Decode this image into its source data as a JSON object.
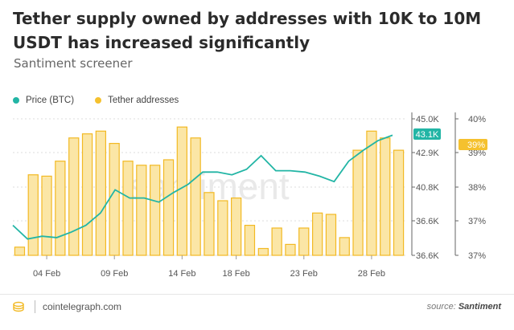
{
  "title": "Tether supply owned by addresses with 10K to 10M USDT has increased significantly",
  "subtitle": "Santiment screener",
  "footer": {
    "brand": "cointelegraph.com",
    "source_prefix": "source: ",
    "source_name": "Santiment"
  },
  "watermark": "santiment",
  "colors": {
    "price": "#22b5a5",
    "tether": "#f5c12e",
    "bar_fill": "#fbe6a6",
    "bar_stroke": "#f2b924",
    "grid": "#dcdcdc"
  },
  "chart_data": {
    "type": "bar+line",
    "x_ticks": [
      "04 Feb",
      "09 Feb",
      "14 Feb",
      "18 Feb",
      "23 Feb",
      "28 Feb"
    ],
    "x_tick_index": [
      2,
      7,
      12,
      16,
      21,
      26
    ],
    "y_left": {
      "ticks": [
        "45.0K",
        "42.9K",
        "40.8K",
        "36.6K",
        "36.6K"
      ],
      "current": "43.1K"
    },
    "y_right": {
      "ticks": [
        "40%",
        "39%",
        "38%",
        "37%",
        "37%"
      ],
      "current": "39%"
    },
    "legend": [
      {
        "name": "Price (BTC)",
        "color": "#22b5a5"
      },
      {
        "name": "Tether addresses",
        "color": "#f5c12e"
      }
    ],
    "series": [
      {
        "name": "Tether addresses",
        "kind": "bar",
        "axis": "right",
        "values": [
          0.06,
          0.59,
          0.58,
          0.69,
          0.86,
          0.89,
          0.91,
          0.82,
          0.69,
          0.66,
          0.66,
          0.7,
          0.94,
          0.86,
          0.46,
          0.4,
          0.42,
          0.22,
          0.05,
          0.2,
          0.08,
          0.2,
          0.31,
          0.3,
          0.13,
          0.77,
          0.91,
          0.86,
          0.77
        ]
      },
      {
        "name": "Price (BTC)",
        "kind": "line",
        "axis": "left",
        "values": [
          0.22,
          0.12,
          0.14,
          0.13,
          0.17,
          0.22,
          0.31,
          0.48,
          0.42,
          0.42,
          0.39,
          0.46,
          0.52,
          0.61,
          0.61,
          0.59,
          0.63,
          0.73,
          0.62,
          0.62,
          0.61,
          0.58,
          0.54,
          0.69,
          0.77,
          0.84,
          0.88
        ]
      }
    ]
  }
}
